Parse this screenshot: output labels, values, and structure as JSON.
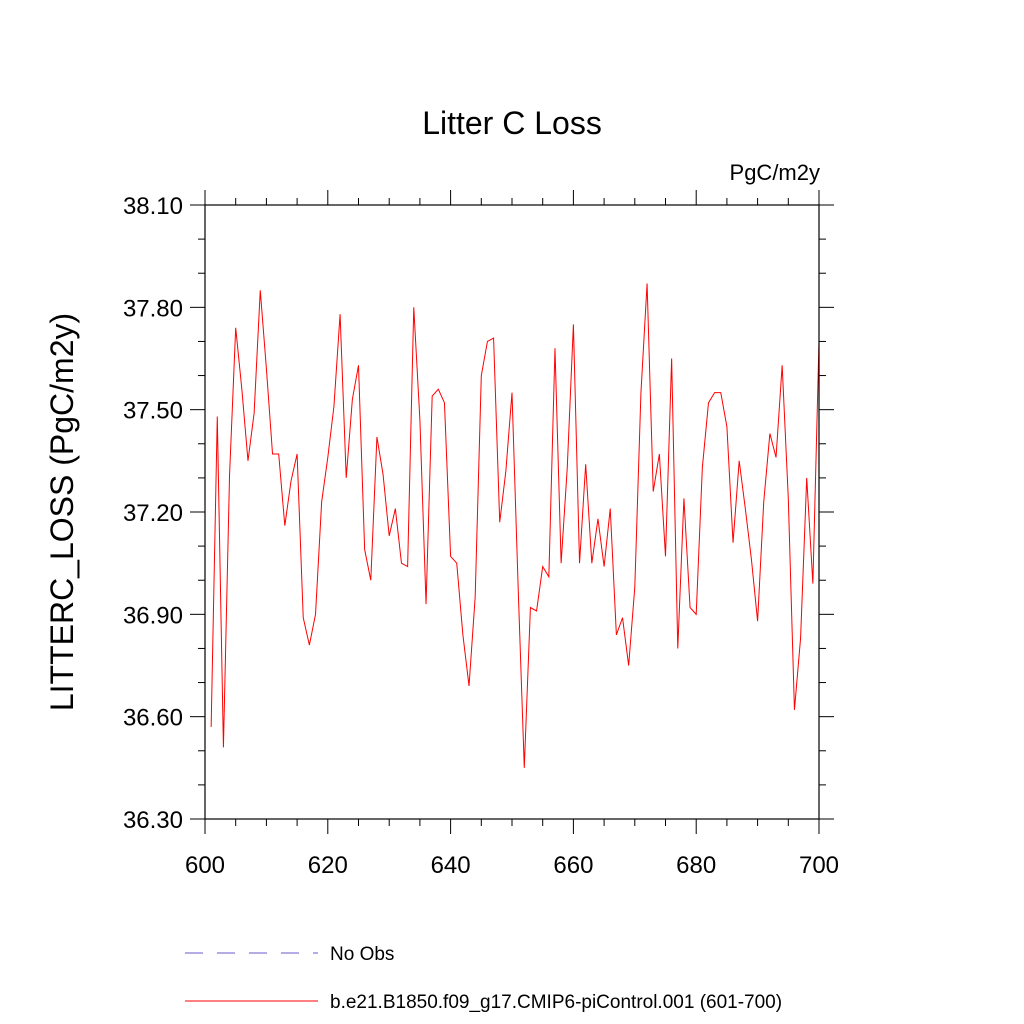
{
  "chart_data": {
    "type": "line",
    "title": "Litter C Loss",
    "units_label": "PgC/m2y",
    "ylabel": "LITTERC_LOSS  (PgC/m2y)",
    "xlabel": "",
    "xlim": [
      600,
      700
    ],
    "ylim": [
      36.3,
      38.1
    ],
    "x_ticks": [
      600,
      620,
      640,
      660,
      680,
      700
    ],
    "x_tick_labels": [
      "600",
      "620",
      "640",
      "660",
      "680",
      "700"
    ],
    "y_ticks": [
      36.3,
      36.6,
      36.9,
      37.2,
      37.5,
      37.8,
      38.1
    ],
    "y_tick_labels": [
      "36.30",
      "36.60",
      "36.90",
      "37.20",
      "37.50",
      "37.80",
      "38.10"
    ],
    "grid": false,
    "legend_position": "bottom",
    "series": [
      {
        "name": "No Obs",
        "color": "#6a5acd",
        "dash": "dashed",
        "x": [],
        "values": []
      },
      {
        "name": "b.e21.B1850.f09_g17.CMIP6-piControl.001 (601-700)",
        "color": "#ff0000",
        "dash": "solid",
        "x": [
          601,
          602,
          603,
          604,
          605,
          606,
          607,
          608,
          609,
          610,
          611,
          612,
          613,
          614,
          615,
          616,
          617,
          618,
          619,
          620,
          621,
          622,
          623,
          624,
          625,
          626,
          627,
          628,
          629,
          630,
          631,
          632,
          633,
          634,
          635,
          636,
          637,
          638,
          639,
          640,
          641,
          642,
          643,
          644,
          645,
          646,
          647,
          648,
          649,
          650,
          651,
          652,
          653,
          654,
          655,
          656,
          657,
          658,
          659,
          660,
          661,
          662,
          663,
          664,
          665,
          666,
          667,
          668,
          669,
          670,
          671,
          672,
          673,
          674,
          675,
          676,
          677,
          678,
          679,
          680,
          681,
          682,
          683,
          684,
          685,
          686,
          687,
          688,
          689,
          690,
          691,
          692,
          693,
          694,
          695,
          696,
          697,
          698,
          699,
          700
        ],
        "values": [
          36.57,
          37.48,
          36.51,
          37.31,
          37.74,
          37.56,
          37.35,
          37.49,
          37.85,
          37.62,
          37.37,
          37.37,
          37.16,
          37.29,
          37.37,
          36.89,
          36.81,
          36.9,
          37.23,
          37.36,
          37.51,
          37.78,
          37.3,
          37.53,
          37.63,
          37.09,
          37.0,
          37.42,
          37.31,
          37.13,
          37.21,
          37.05,
          37.04,
          37.8,
          37.47,
          36.93,
          37.54,
          37.56,
          37.52,
          37.07,
          37.05,
          36.84,
          36.69,
          36.95,
          37.6,
          37.7,
          37.71,
          37.17,
          37.32,
          37.55,
          36.98,
          36.45,
          36.92,
          36.91,
          37.04,
          37.01,
          37.68,
          37.05,
          37.33,
          37.75,
          37.05,
          37.34,
          37.05,
          37.18,
          37.04,
          37.21,
          36.84,
          36.89,
          36.75,
          36.98,
          37.55,
          37.87,
          37.26,
          37.37,
          37.07,
          37.65,
          36.8,
          37.24,
          36.92,
          36.9,
          37.33,
          37.52,
          37.55,
          37.55,
          37.45,
          37.11,
          37.35,
          37.21,
          37.06,
          36.88,
          37.23,
          37.43,
          37.36,
          37.63,
          37.24,
          36.62,
          36.83,
          37.3,
          36.99,
          37.7
        ]
      }
    ]
  }
}
